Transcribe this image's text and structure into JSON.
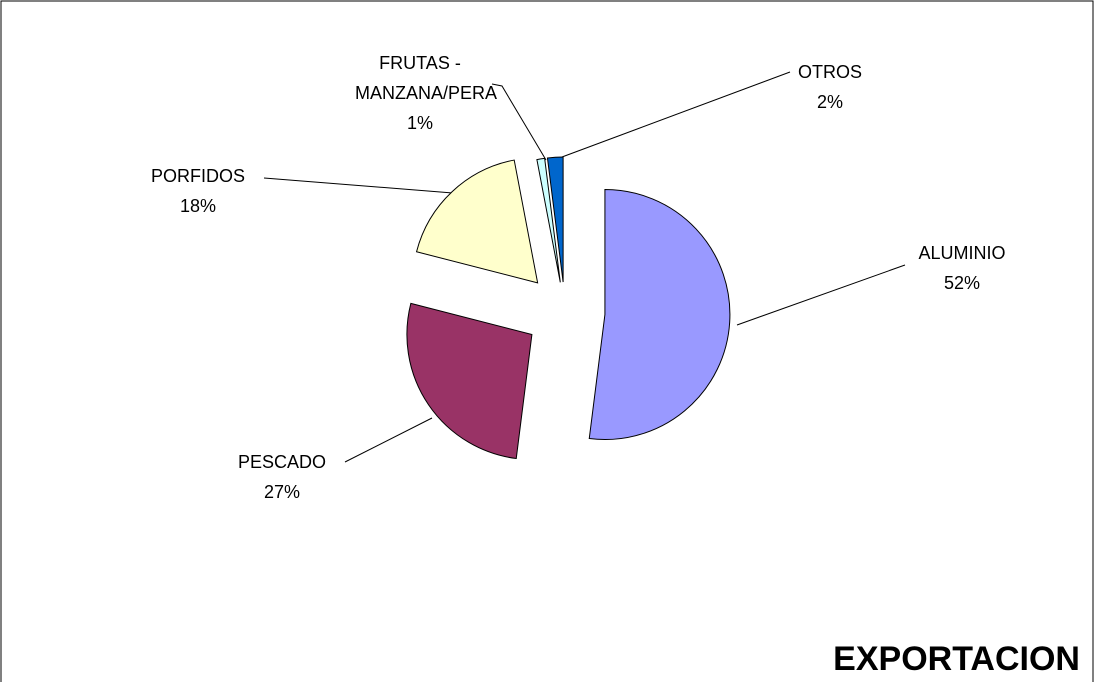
{
  "chart_data": {
    "type": "pie",
    "title": "EXPORTACION",
    "categories": [
      "ALUMINIO",
      "PESCADO",
      "PORFIDOS",
      "FRUTAS - MANZANA/PERA",
      "OTROS"
    ],
    "values": [
      52,
      27,
      18,
      1,
      2
    ],
    "value_labels": [
      "52%",
      "27%",
      "18%",
      "1%",
      "2%"
    ],
    "colors": [
      "#9999ff",
      "#993366",
      "#ffffcc",
      "#ccffff",
      "#0066cc"
    ]
  }
}
